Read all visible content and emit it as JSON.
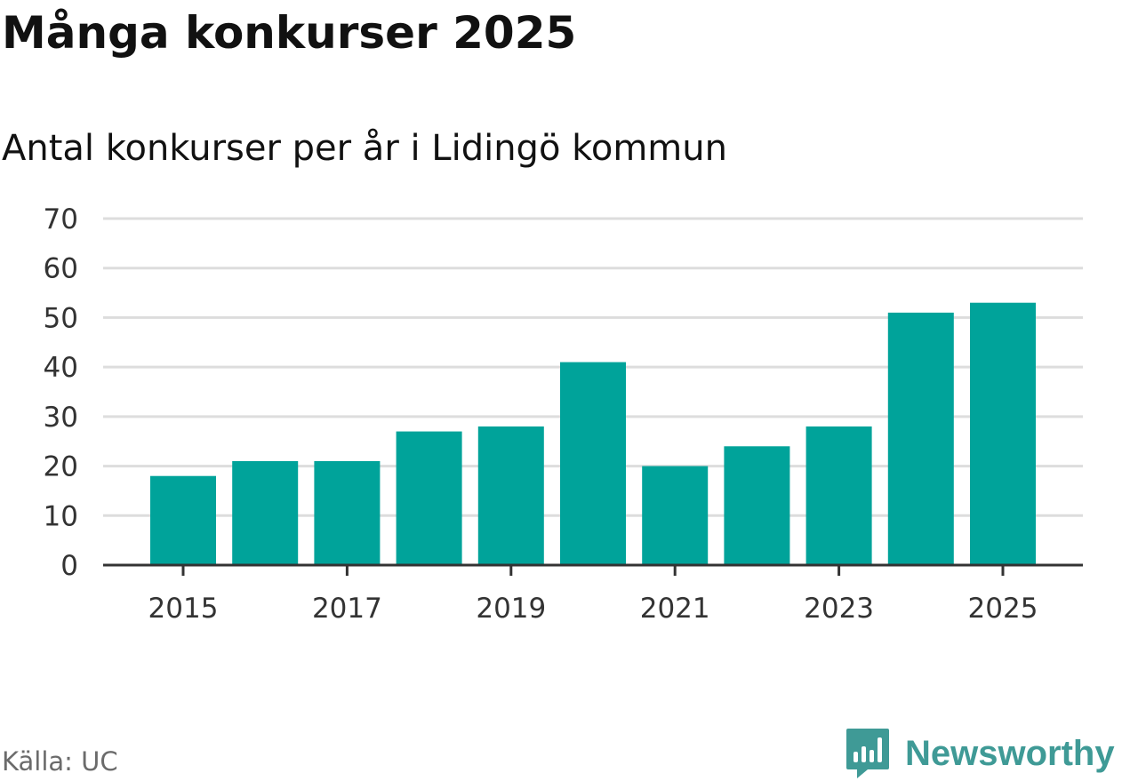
{
  "header": {
    "title": "Många konkurser 2025",
    "subtitle": "Antal konkurser per år i Lidingö kommun"
  },
  "footer": {
    "source": "Källa: UC",
    "brand": "Newsworthy",
    "brand_icon": "newsworthy-logo-icon"
  },
  "colors": {
    "bar": "#00a39a",
    "grid": "#dddddd",
    "axis": "#333333",
    "brand": "#3f9a96"
  },
  "chart_data": {
    "type": "bar",
    "title": "Många konkurser 2025",
    "subtitle": "Antal konkurser per år i Lidingö kommun",
    "xlabel": "",
    "ylabel": "",
    "categories": [
      "2015",
      "2016",
      "2017",
      "2018",
      "2019",
      "2020",
      "2021",
      "2022",
      "2023",
      "2024",
      "2025"
    ],
    "values": [
      18,
      21,
      21,
      27,
      28,
      41,
      20,
      24,
      28,
      51,
      53
    ],
    "x_tick_labels": [
      "2015",
      "2017",
      "2019",
      "2021",
      "2023",
      "2025"
    ],
    "y_ticks": [
      0,
      10,
      20,
      30,
      40,
      50,
      60,
      70
    ],
    "ylim": [
      0,
      70
    ],
    "grid": true,
    "legend": "none"
  }
}
